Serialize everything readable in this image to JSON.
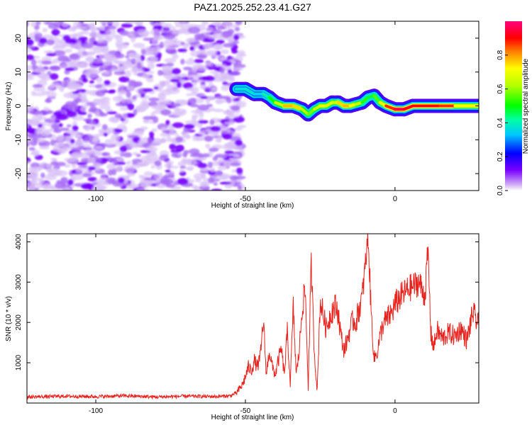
{
  "title": "PAZ1.2025.252.23.41.G27",
  "colors": {
    "snr_line": "#e8231e",
    "axis": "#000000",
    "noise": "#8a2be2"
  },
  "chart_data": [
    {
      "type": "heatmap",
      "name": "spectrogram",
      "title": "PAZ1.2025.252.23.41.G27",
      "xlabel": "Height of straight line (km)",
      "ylabel": "Frequency (Hz)",
      "xlim": [
        -123,
        28
      ],
      "ylim": [
        -25,
        25
      ],
      "x_ticks": [
        -100,
        -50,
        0
      ],
      "x_tick_labels": [
        "-100",
        "-50",
        "0"
      ],
      "y_ticks": [
        -20,
        -10,
        0,
        10,
        20
      ],
      "y_tick_labels": [
        "-20",
        "-10",
        "0",
        "10",
        "20"
      ],
      "noise_region_x": [
        -123,
        -53
      ],
      "signal_track": {
        "x": [
          -53,
          -50,
          -47,
          -44,
          -42,
          -40,
          -37,
          -34,
          -31,
          -29,
          -27,
          -25,
          -23,
          -21,
          -19,
          -17,
          -15,
          -13,
          -11,
          -9,
          -7,
          -5,
          -3,
          0,
          3,
          6,
          10,
          15,
          20,
          28
        ],
        "freq": [
          5,
          5,
          3.5,
          3.5,
          2.5,
          1,
          0,
          0,
          -1,
          -2.5,
          -1,
          0,
          0,
          1,
          1,
          0,
          0,
          0.5,
          1,
          2.5,
          3,
          1,
          0,
          -1,
          -1,
          0,
          0,
          0,
          0,
          0
        ],
        "amp": [
          0.35,
          0.4,
          0.35,
          0.35,
          0.45,
          0.55,
          0.75,
          0.8,
          0.7,
          0.55,
          0.6,
          0.7,
          0.7,
          0.65,
          0.7,
          0.8,
          0.75,
          0.7,
          0.6,
          0.45,
          0.5,
          0.6,
          0.8,
          0.95,
          0.95,
          0.9,
          0.9,
          0.9,
          0.85,
          0.6
        ]
      }
    },
    {
      "type": "colorbar",
      "name": "amplitude-colorbar",
      "label": "Normalized spectral amplitude",
      "range": [
        0,
        1
      ],
      "ticks": [
        0.0,
        0.2,
        0.4,
        0.6,
        0.8
      ],
      "tick_labels": [
        "0.0",
        "0.2",
        "0.4",
        "0.6",
        "0.8"
      ]
    },
    {
      "type": "line",
      "name": "snr-plot",
      "xlabel": "Height of straight line (km)",
      "ylabel": "SNR (10 * v/v)",
      "xlim": [
        -123,
        28
      ],
      "ylim": [
        0,
        4200
      ],
      "x_ticks": [
        -100,
        -50,
        0
      ],
      "x_tick_labels": [
        "-100",
        "-50",
        "0"
      ],
      "y_ticks": [
        1000,
        2000,
        3000,
        4000
      ],
      "y_tick_labels": [
        "1000",
        "2000",
        "3000",
        "4000"
      ],
      "series": [
        {
          "name": "SNR",
          "x": [
            -123,
            -110,
            -100,
            -90,
            -80,
            -70,
            -60,
            -55,
            -53,
            -51,
            -50,
            -49,
            -48,
            -47,
            -46,
            -45,
            -44,
            -43,
            -42,
            -41,
            -40,
            -39,
            -38,
            -37,
            -36,
            -35,
            -34,
            -33,
            -32,
            -31,
            -30,
            -29,
            -28,
            -27,
            -26,
            -25,
            -24,
            -23,
            -22,
            -21,
            -20,
            -19,
            -18,
            -17,
            -16,
            -15,
            -14,
            -13,
            -12,
            -11,
            -10,
            -9,
            -8,
            -7,
            -6,
            -5,
            -4,
            -3,
            -2,
            -1,
            0,
            2,
            4,
            6,
            8,
            10,
            11,
            12,
            13,
            14,
            16,
            18,
            20,
            22,
            24,
            26,
            28
          ],
          "y": [
            150,
            170,
            160,
            180,
            150,
            170,
            160,
            180,
            250,
            450,
            650,
            900,
            800,
            1050,
            900,
            1150,
            2050,
            700,
            1300,
            900,
            700,
            1050,
            1350,
            700,
            1750,
            500,
            2350,
            700,
            1300,
            2400,
            2800,
            400,
            3450,
            1300,
            300,
            2550,
            2200,
            1850,
            2100,
            2300,
            2400,
            2250,
            1650,
            1300,
            1550,
            1850,
            2050,
            2000,
            2350,
            2600,
            3350,
            4150,
            2300,
            1100,
            1250,
            1650,
            1950,
            2050,
            2150,
            2250,
            2450,
            2650,
            2800,
            2900,
            3000,
            2650,
            3800,
            1700,
            1400,
            1800,
            1600,
            1750,
            1650,
            1850,
            1550,
            2250,
            1900
          ]
        }
      ]
    }
  ]
}
